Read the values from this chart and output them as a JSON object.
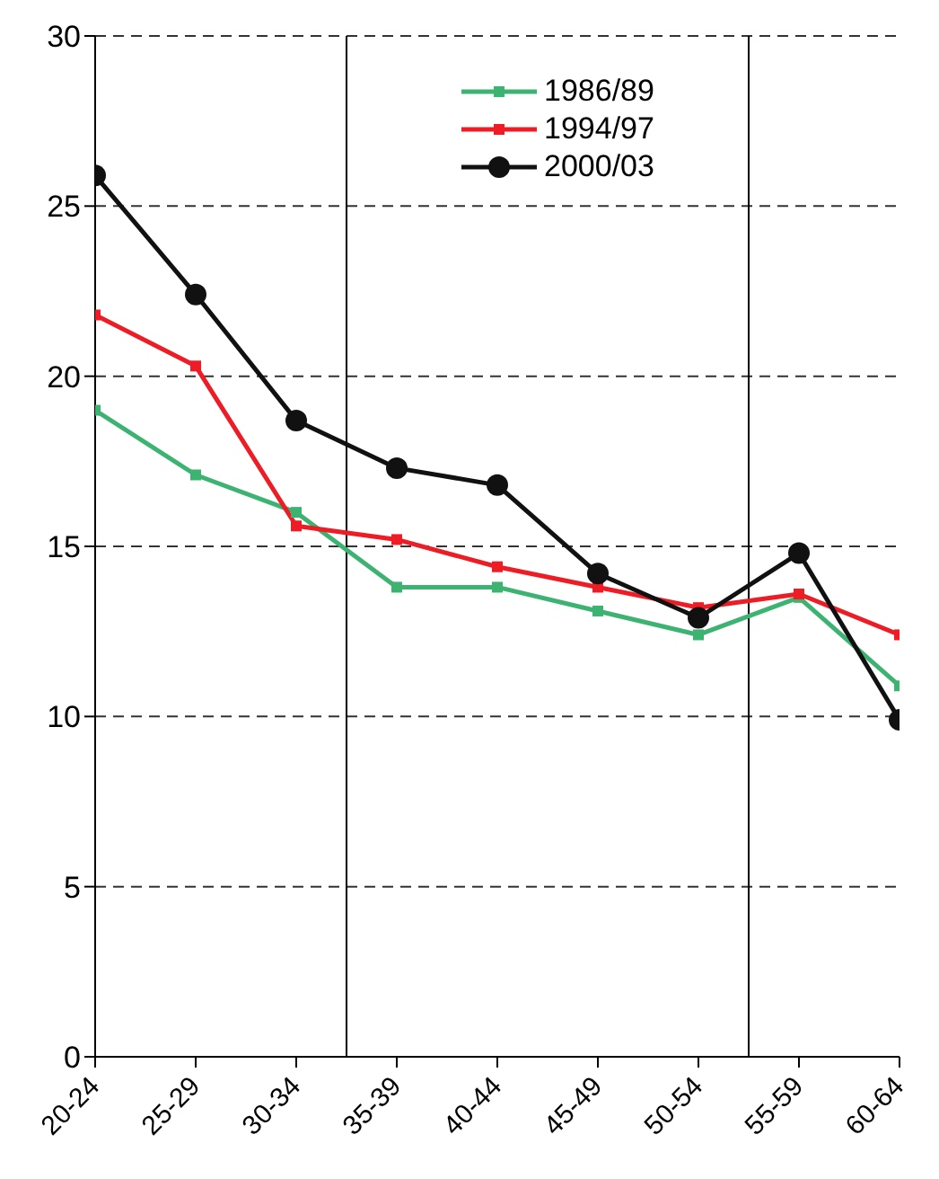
{
  "chart_data": {
    "type": "line",
    "categories": [
      "20-24",
      "25-29",
      "30-34",
      "35-39",
      "40-44",
      "45-49",
      "50-54",
      "55-59",
      "60-64"
    ],
    "ylim": [
      0,
      30
    ],
    "yticks": [
      0,
      5,
      10,
      15,
      20,
      25,
      30
    ],
    "grid": "y",
    "legend": "top",
    "series": [
      {
        "name": "1986/89",
        "color": "#3cb371",
        "marker": "square",
        "values": [
          19.0,
          17.1,
          16.0,
          13.8,
          13.8,
          13.1,
          12.4,
          13.5,
          10.9
        ]
      },
      {
        "name": "1994/97",
        "color": "#ee1c25",
        "marker": "square",
        "values": [
          21.8,
          20.3,
          15.6,
          15.2,
          14.4,
          13.8,
          13.2,
          13.6,
          12.4
        ]
      },
      {
        "name": "2000/03",
        "color": "#111111",
        "marker": "circle",
        "values": [
          25.9,
          22.4,
          18.7,
          17.3,
          16.8,
          14.2,
          12.9,
          14.8,
          9.9
        ]
      }
    ]
  }
}
